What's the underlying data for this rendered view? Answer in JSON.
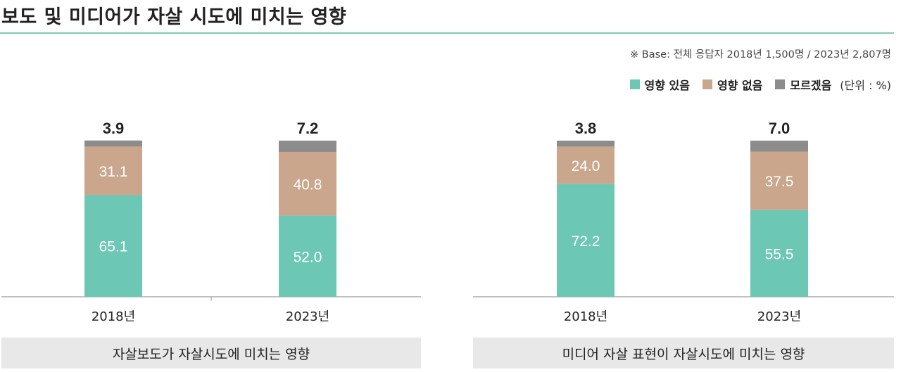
{
  "title": "보도 및 미디어가 자살 시도에 미치는 영향",
  "base_note": "※ Base: 전체 응답자 2018년 1,500명 / 2023년 2,807명",
  "legend": {
    "items": [
      {
        "label": "영향 있음",
        "color": "#6cc7b5"
      },
      {
        "label": "영향 없음",
        "color": "#c9a68c"
      },
      {
        "label": "모르겠음",
        "color": "#8c8c8c"
      }
    ],
    "unit": "(단위 : %)"
  },
  "chart_data": [
    {
      "type": "bar",
      "stacked": true,
      "title": "자살보도가 자살시도에 미치는 영향",
      "categories": [
        "2018년",
        "2023년"
      ],
      "series": [
        {
          "name": "영향 있음",
          "values": [
            65.1,
            52.0
          ],
          "labels": [
            "65.1",
            "52.0"
          ]
        },
        {
          "name": "영향 없음",
          "values": [
            31.1,
            40.8
          ],
          "labels": [
            "31.1",
            "40.8"
          ]
        },
        {
          "name": "모르겠음",
          "values": [
            3.9,
            7.2
          ],
          "labels": [
            "3.9",
            "7.2"
          ]
        }
      ],
      "unit": "%",
      "ylim": [
        0,
        100
      ]
    },
    {
      "type": "bar",
      "stacked": true,
      "title": "미디어 자살 표현이 자살시도에 미치는 영향",
      "categories": [
        "2018년",
        "2023년"
      ],
      "series": [
        {
          "name": "영향 있음",
          "values": [
            72.2,
            55.5
          ],
          "labels": [
            "72.2",
            "55.5"
          ]
        },
        {
          "name": "영향 없음",
          "values": [
            24.0,
            37.5
          ],
          "labels": [
            "24.0",
            "37.5"
          ]
        },
        {
          "name": "모르겠음",
          "values": [
            3.8,
            7.0
          ],
          "labels": [
            "3.8",
            "7.0"
          ]
        }
      ],
      "unit": "%",
      "ylim": [
        0,
        100
      ]
    }
  ]
}
